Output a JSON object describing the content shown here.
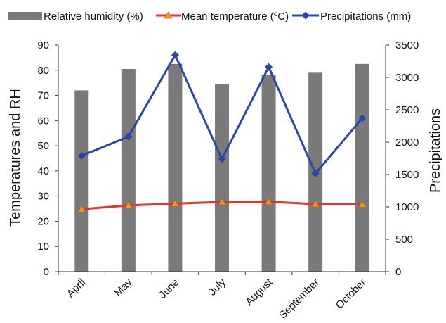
{
  "chart_data": {
    "type": "bar",
    "categories": [
      "April",
      "May",
      "June",
      "July",
      "August",
      "September",
      "October"
    ],
    "series": [
      {
        "name": "Relative humidity (%)",
        "type": "bar",
        "axis": "left",
        "color": "#7a7a7a",
        "values": [
          72,
          80.5,
          82.5,
          74.5,
          78,
          79,
          82.5
        ]
      },
      {
        "name": "Mean temperature (",
        "name_sup": "o",
        "name_tail": "C)",
        "type": "line",
        "axis": "left",
        "color": "#e8322b",
        "marker": "triangle",
        "marker_color": "#e0a020",
        "values": [
          24.8,
          26.3,
          27.0,
          27.7,
          27.8,
          26.8,
          26.7
        ]
      },
      {
        "name": "Precipitations (mm)",
        "type": "line",
        "axis": "right",
        "color": "#2a47a8",
        "marker": "diamond",
        "values": [
          1790,
          2085,
          3345,
          1740,
          3160,
          1515,
          2370
        ]
      }
    ],
    "ylabel": "Temperatures and RH",
    "y2label": "Precipitations",
    "ylim": [
      0,
      90
    ],
    "y2lim": [
      0,
      3500
    ],
    "yticks": [
      "0",
      "10",
      "20",
      "30",
      "40",
      "50",
      "60",
      "70",
      "80",
      "90"
    ],
    "y2ticks": [
      "0",
      "500",
      "1000",
      "1500",
      "2000",
      "2500",
      "3000",
      "3500"
    ],
    "legend_position": "top",
    "grid": false
  }
}
